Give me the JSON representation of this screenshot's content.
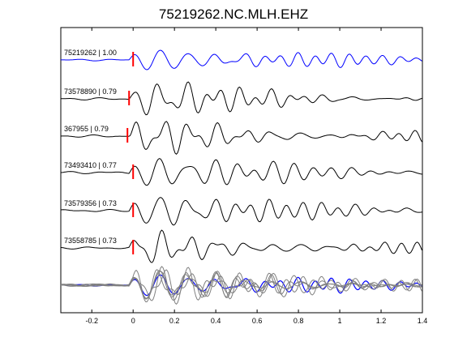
{
  "title": "75219262.NC.MLH.EHZ",
  "chart_data": {
    "type": "line",
    "title": "75219262.NC.MLH.EHZ",
    "xlabel": "",
    "ylabel": "",
    "xlim": [
      -0.35,
      1.4
    ],
    "xticks": [
      -0.2,
      0,
      0.2,
      0.4,
      0.6,
      0.8,
      1,
      1.2,
      1.4
    ],
    "xtick_labels": [
      "-0.2",
      "0",
      "0.2",
      "0.4",
      "0.6",
      "0.8",
      "1",
      "1.2",
      "1.4"
    ],
    "grid": false,
    "pick_time": 0,
    "colors": {
      "reference": "#0000ff",
      "trace": "#000000",
      "overlay": "#808080",
      "pick": "#ff0000"
    },
    "series": [
      {
        "name": "75219262 | 1.00",
        "id": "75219262",
        "cc": 1.0,
        "color": "#0000ff"
      },
      {
        "name": "73578890 | 0.79",
        "id": "73578890",
        "cc": 0.79,
        "color": "#000000"
      },
      {
        "name": "367955 | 0.79",
        "id": "367955",
        "cc": 0.79,
        "color": "#000000"
      },
      {
        "name": "73493410 | 0.77",
        "id": "73493410",
        "cc": 0.77,
        "color": "#000000"
      },
      {
        "name": "73579356 | 0.73",
        "id": "73579356",
        "cc": 0.73,
        "color": "#000000"
      },
      {
        "name": "73558785 | 0.73",
        "id": "73558785",
        "cc": 0.73,
        "color": "#000000"
      }
    ]
  }
}
